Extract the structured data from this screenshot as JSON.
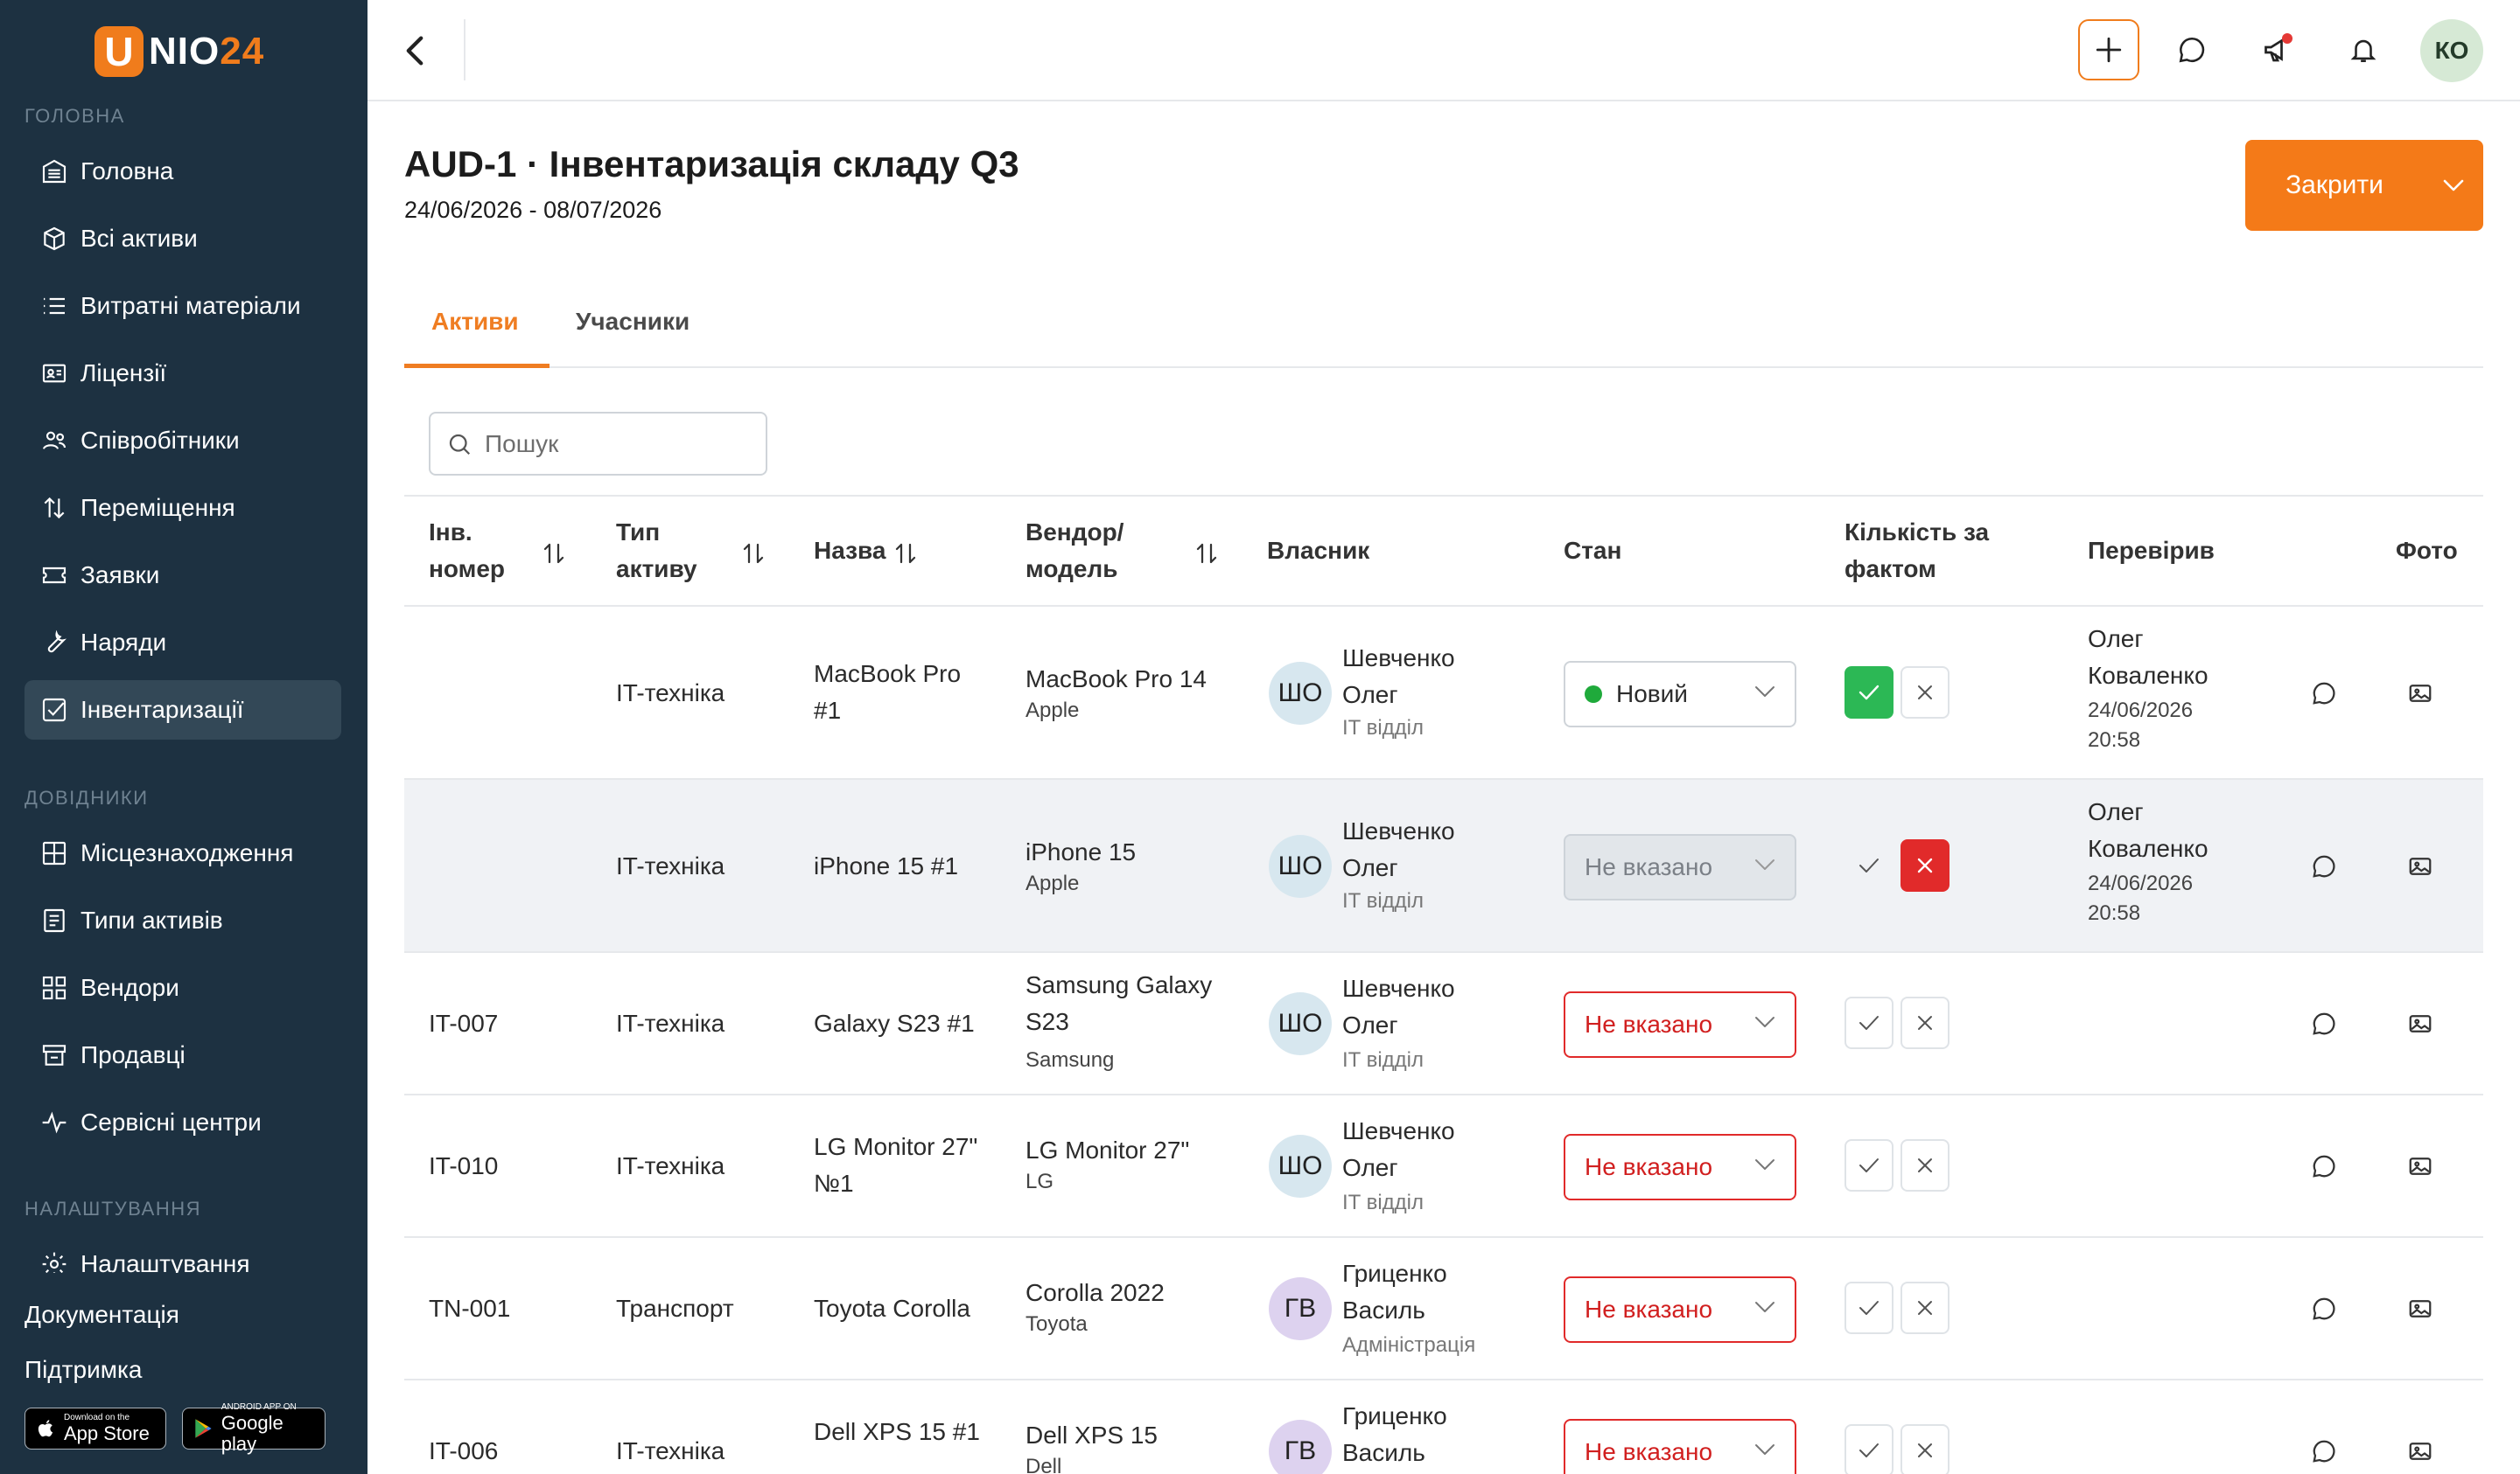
{
  "logo": {
    "badge": "U",
    "text": "NIO",
    "num": "24"
  },
  "sidebar": {
    "sections": {
      "main": "ГОЛОВНА",
      "refs": "ДОВІДНИКИ",
      "settings": "НАЛАШТУВАННЯ"
    },
    "items": [
      {
        "label": "Головна",
        "icon": "home-icon"
      },
      {
        "label": "Всі активи",
        "icon": "box-icon"
      },
      {
        "label": "Витратні матеріали",
        "icon": "list-icon"
      },
      {
        "label": "Ліцензії",
        "icon": "license-icon"
      },
      {
        "label": "Співробітники",
        "icon": "users-icon"
      },
      {
        "label": "Переміщення",
        "icon": "transfer-icon"
      },
      {
        "label": "Заявки",
        "icon": "ticket-icon"
      },
      {
        "label": "Наряди",
        "icon": "wrench-icon"
      },
      {
        "label": "Інвентаризації",
        "icon": "checkbox-icon",
        "active": true
      },
      {
        "label": "Місцезнаходження",
        "icon": "grid-icon"
      },
      {
        "label": "Типи активів",
        "icon": "document-icon"
      },
      {
        "label": "Вендори",
        "icon": "blocks-icon"
      },
      {
        "label": "Продавці",
        "icon": "store-icon"
      },
      {
        "label": "Сервісні центри",
        "icon": "pulse-icon"
      },
      {
        "label": "Налаштування",
        "icon": "gear-icon"
      }
    ],
    "docs": "Документація",
    "support": "Підтримка",
    "appstore": {
      "small": "Download on the",
      "big": "App Store"
    },
    "googleplay": {
      "small": "ANDROID APP ON",
      "big": "Google play"
    }
  },
  "topbar": {
    "avatar": "КО"
  },
  "header": {
    "title": "AUD-1 · Інвентаризація складу Q3",
    "dates": "24/06/2026 - 08/07/2026",
    "close_label": "Закрити"
  },
  "tabs": [
    {
      "label": "Активи",
      "active": true
    },
    {
      "label": "Учасники",
      "active": false
    }
  ],
  "search": {
    "placeholder": "Пошук"
  },
  "table": {
    "headers": {
      "inv": "Інв. номер",
      "type": "Тип активу",
      "name": "Назва",
      "vendor": "Вендор/ модель",
      "owner": "Власник",
      "state": "Стан",
      "qty": "Кількість за фактом",
      "checked": "Перевірив",
      "photo": "Фото"
    },
    "rows": [
      {
        "inv": "",
        "type": "IT-техніка",
        "name": "MacBook Pro #1",
        "model": "MacBook Pro 14",
        "vendor": "Apple",
        "initials": "ШО",
        "owner": "Шевченко Олег",
        "dept": "IT відділ",
        "state": "Новий",
        "state_kind": "ok",
        "qty": "yes",
        "checker": "Олег Коваленко",
        "checked_at": "24/06/2026 20:58"
      },
      {
        "inv": "",
        "type": "IT-техніка",
        "name": "iPhone 15 #1",
        "model": "iPhone 15",
        "vendor": "Apple",
        "initials": "ШО",
        "owner": "Шевченко Олег",
        "dept": "IT відділ",
        "state": "Не вказано",
        "state_kind": "disabled",
        "qty": "no",
        "checker": "Олег Коваленко",
        "checked_at": "24/06/2026 20:58"
      },
      {
        "inv": "IT-007",
        "type": "IT-техніка",
        "name": "Galaxy S23 #1",
        "model": "Samsung Galaxy S23",
        "vendor": "Samsung",
        "initials": "ШО",
        "owner": "Шевченко Олег",
        "dept": "IT відділ",
        "state": "Не вказано",
        "state_kind": "error",
        "qty": "none",
        "checker": "",
        "checked_at": ""
      },
      {
        "inv": "IT-010",
        "type": "IT-техніка",
        "name": "LG Monitor 27\" №1",
        "model": "LG Monitor 27\"",
        "vendor": "LG",
        "initials": "ШО",
        "owner": "Шевченко Олег",
        "dept": "IT відділ",
        "state": "Не вказано",
        "state_kind": "error",
        "qty": "none",
        "checker": "",
        "checked_at": ""
      },
      {
        "inv": "TN-001",
        "type": "Транспорт",
        "name": "Toyota Corolla",
        "model": "Corolla 2022",
        "vendor": "Toyota",
        "initials": "ГВ",
        "owner": "Гриценко Василь",
        "dept": "Адміністрація",
        "state": "Не вказано",
        "state_kind": "error",
        "qty": "none",
        "checker": "",
        "checked_at": ""
      },
      {
        "inv": "IT-006",
        "type": "IT-техніка",
        "name": "Dell XPS 15 #1",
        "model": "Dell XPS 15",
        "vendor": "Dell",
        "initials": "ГВ",
        "owner": "Гриценко Василь",
        "dept": "",
        "state": "Не вказано",
        "state_kind": "error",
        "qty": "none",
        "checker": "",
        "checked_at": ""
      }
    ]
  },
  "colors": {
    "accent": "#f07c1c",
    "sidebar": "#1d3141",
    "sidebar_active": "#334857",
    "error": "#e12a2a",
    "success": "#2cb855"
  }
}
